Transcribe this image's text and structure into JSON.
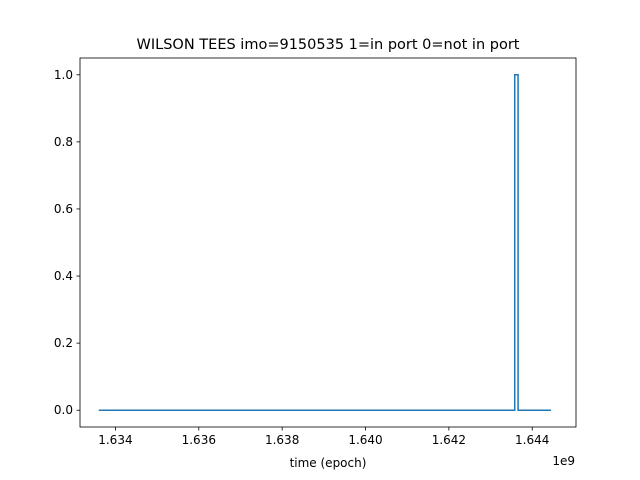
{
  "chart_data": {
    "type": "line",
    "title": "WILSON TEES imo=9150535 1=in port 0=not in port",
    "xlabel": "time (epoch)",
    "ylabel": "",
    "x_offset_label": "1e9",
    "xlim": [
      1633150000.0,
      1645050000.0
    ],
    "ylim": [
      -0.05,
      1.05
    ],
    "x_ticks": [
      1634000000.0,
      1636000000.0,
      1638000000.0,
      1640000000.0,
      1642000000.0,
      1644000000.0
    ],
    "x_tick_labels": [
      "1.634",
      "1.636",
      "1.638",
      "1.640",
      "1.642",
      "1.644"
    ],
    "y_ticks": [
      0.0,
      0.2,
      0.4,
      0.6,
      0.8,
      1.0
    ],
    "y_tick_labels": [
      "0.0",
      "0.2",
      "0.4",
      "0.6",
      "0.8",
      "1.0"
    ],
    "grid": false,
    "series": [
      {
        "color": "#1f77b4",
        "step": "post",
        "x": [
          1633600000.0,
          1643580000.0,
          1643660000.0,
          1644450000.0
        ],
        "y": [
          0,
          1,
          0,
          0
        ]
      }
    ]
  }
}
